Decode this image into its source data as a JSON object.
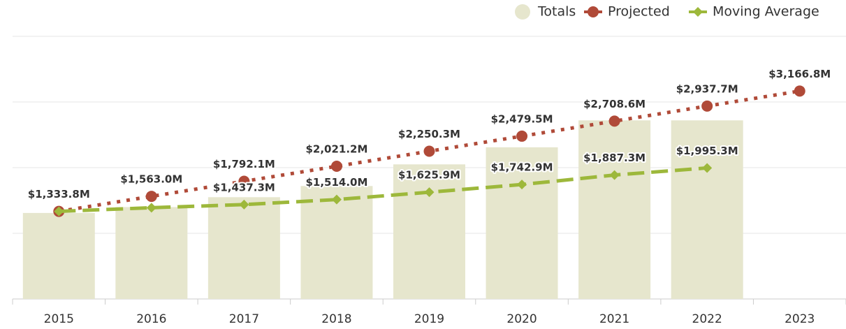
{
  "chart_data": {
    "type": "bar",
    "categories": [
      "2015",
      "2016",
      "2017",
      "2018",
      "2019",
      "2020",
      "2021",
      "2022",
      "2023"
    ],
    "series": [
      {
        "name": "Totals",
        "type": "bar",
        "color": "#e6e6cd",
        "values": [
          1310,
          1400,
          1550,
          1720,
          2050,
          2310,
          2720,
          2720,
          null
        ]
      },
      {
        "name": "Projected",
        "type": "line",
        "style": "dotted",
        "marker": "circle",
        "color": "#b04a38",
        "values": [
          1333.8,
          1563.0,
          1792.1,
          2021.2,
          2250.3,
          2479.5,
          2708.6,
          2937.7,
          3166.8
        ],
        "value_labels": [
          "$1,333.8M",
          "$1,563.0M",
          "$1,792.1M",
          "$2,021.2M",
          "$2,250.3M",
          "$2,479.5M",
          "$2,708.6M",
          "$2,937.7M",
          "$3,166.8M"
        ]
      },
      {
        "name": "Moving Average",
        "type": "line",
        "style": "dashed",
        "marker": "diamond",
        "color": "#9db83b",
        "values": [
          1333.8,
          1390,
          1437.3,
          1514.0,
          1625.9,
          1742.9,
          1887.3,
          1995.3,
          null
        ],
        "value_labels": [
          null,
          null,
          "$1,437.3M",
          "$1,514.0M",
          "$1,625.9M",
          "$1,742.9M",
          "$1,887.3M",
          "$1,995.3M",
          null
        ]
      }
    ],
    "ylim": [
      0,
      4000
    ],
    "yticks": [
      0,
      1000,
      2000,
      3000,
      4000
    ],
    "grid": true,
    "legend": "top-right"
  }
}
